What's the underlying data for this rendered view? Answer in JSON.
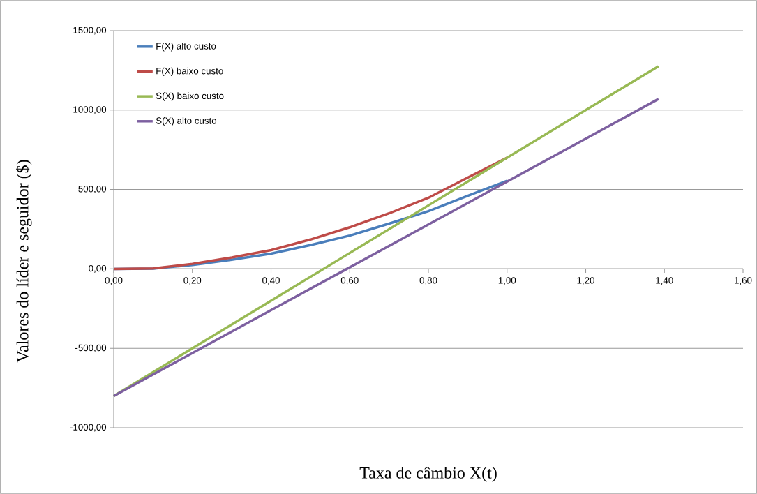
{
  "chart_data": {
    "type": "line",
    "xlabel": "Taxa de câmbio X(t)",
    "ylabel": "Valores do líder e seguidor ($)",
    "xlim": [
      0,
      1.6
    ],
    "ylim": [
      -1000,
      1500
    ],
    "xticks": [
      {
        "value": 0,
        "label": "0,00"
      },
      {
        "value": 0.2,
        "label": "0,20"
      },
      {
        "value": 0.4,
        "label": "0,40"
      },
      {
        "value": 0.6,
        "label": "0,60"
      },
      {
        "value": 0.8,
        "label": "0,80"
      },
      {
        "value": 1.0,
        "label": "1,00"
      },
      {
        "value": 1.2,
        "label": "1,20"
      },
      {
        "value": 1.4,
        "label": "1,40"
      },
      {
        "value": 1.6,
        "label": "1,60"
      }
    ],
    "yticks": [
      {
        "value": -1000,
        "label": "-1000,00"
      },
      {
        "value": -500,
        "label": "-500,00"
      },
      {
        "value": 0,
        "label": "0,00"
      },
      {
        "value": 500,
        "label": "500,00"
      },
      {
        "value": 1000,
        "label": "1000,00"
      },
      {
        "value": 1500,
        "label": "1500,00"
      }
    ],
    "grid": "y",
    "legend": "top left",
    "marker": "none",
    "line_style": "solid",
    "series": [
      {
        "name": "F(X) alto custo",
        "color": "#4a7ebb",
        "x": [
          0,
          0.1,
          0.2,
          0.3,
          0.4,
          0.5,
          0.6,
          0.7,
          0.8,
          0.9,
          1.0
        ],
        "values": [
          0,
          2,
          25,
          58,
          96,
          150,
          210,
          285,
          364,
          460,
          555
        ]
      },
      {
        "name": "F(X) baixo custo",
        "color": "#be4b48",
        "x": [
          0,
          0.1,
          0.2,
          0.3,
          0.4,
          0.5,
          0.6,
          0.7,
          0.8,
          0.9,
          1.0
        ],
        "values": [
          0,
          3,
          32,
          72,
          118,
          185,
          262,
          350,
          448,
          575,
          700
        ]
      },
      {
        "name": "S(X) baixo custo",
        "color": "#98b954",
        "x": [
          0,
          0.2,
          0.4,
          0.6,
          0.8,
          1.0,
          1.2,
          1.385
        ],
        "values": [
          -800,
          -500,
          -200,
          100,
          400,
          700,
          1000,
          1276
        ]
      },
      {
        "name": "S(X) alto custo",
        "color": "#7d60a0",
        "x": [
          0,
          0.2,
          0.4,
          0.6,
          0.8,
          1.0,
          1.2,
          1.385
        ],
        "values": [
          -800,
          -530,
          -260,
          10,
          280,
          550,
          820,
          1070
        ]
      }
    ]
  }
}
